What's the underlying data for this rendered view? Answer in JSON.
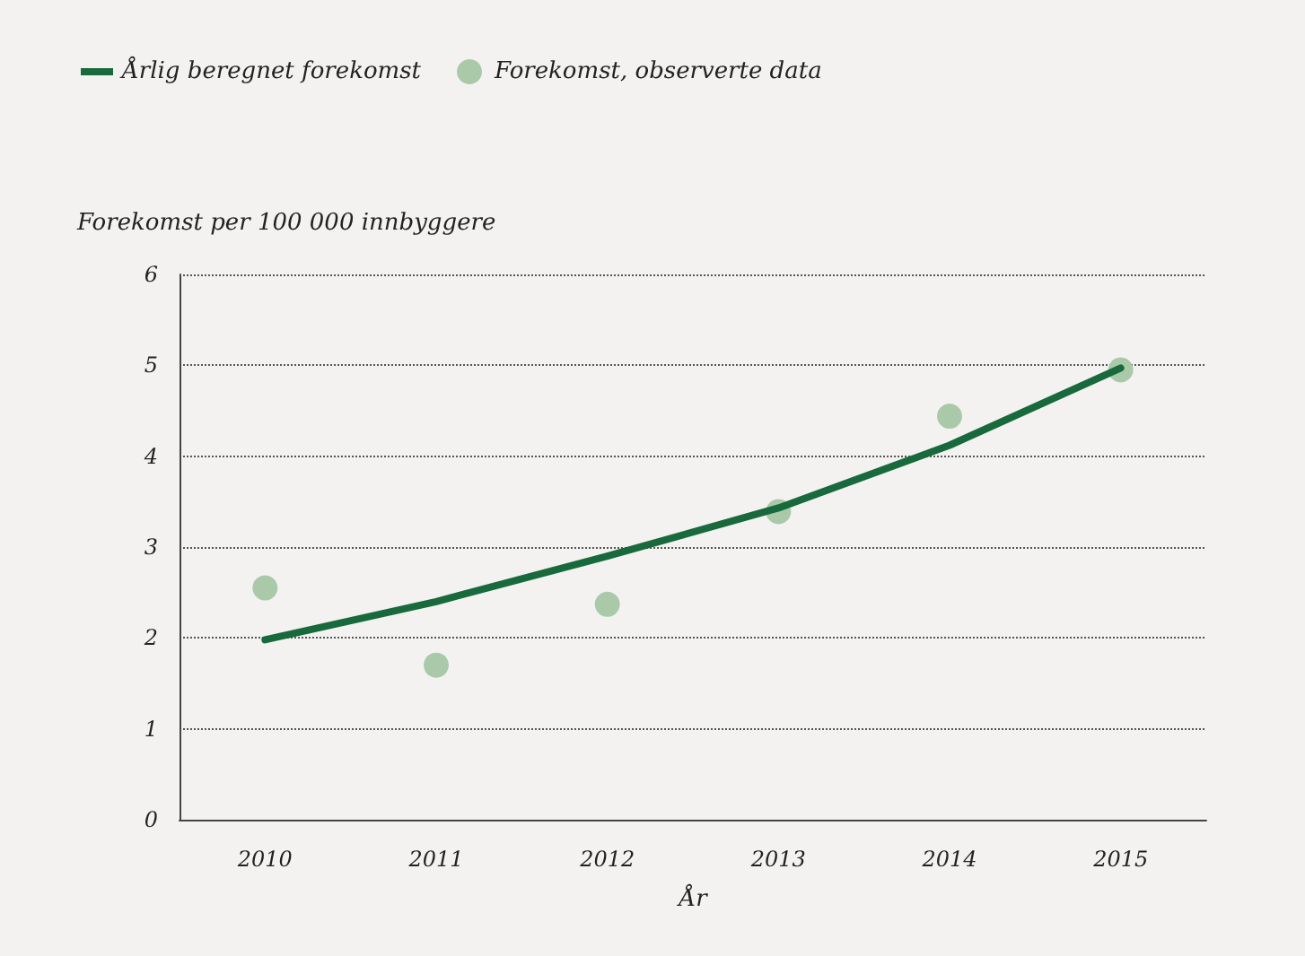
{
  "chart_data": {
    "type": "line",
    "xlabel": "År",
    "ylabel": "Forekomst per 100 000 innbyggere",
    "categories": [
      "2010",
      "2011",
      "2012",
      "2013",
      "2014",
      "2015"
    ],
    "series": [
      {
        "name": "Årlig beregnet forekomst",
        "marker": "none",
        "color": "#18693c",
        "values": [
          1.98,
          2.4,
          2.9,
          3.43,
          4.12,
          4.97
        ]
      },
      {
        "name": "Forekomst, observerte data",
        "type": "scatter",
        "marker": "circle",
        "color": "#a9c9a9",
        "values": [
          2.55,
          1.7,
          2.37,
          3.39,
          4.44,
          4.95
        ]
      }
    ],
    "ylim": [
      0,
      6
    ],
    "yticks": [
      0,
      1,
      2,
      3,
      4,
      5,
      6
    ],
    "grid": "y",
    "legend": "top left",
    "line_style": "solid"
  }
}
